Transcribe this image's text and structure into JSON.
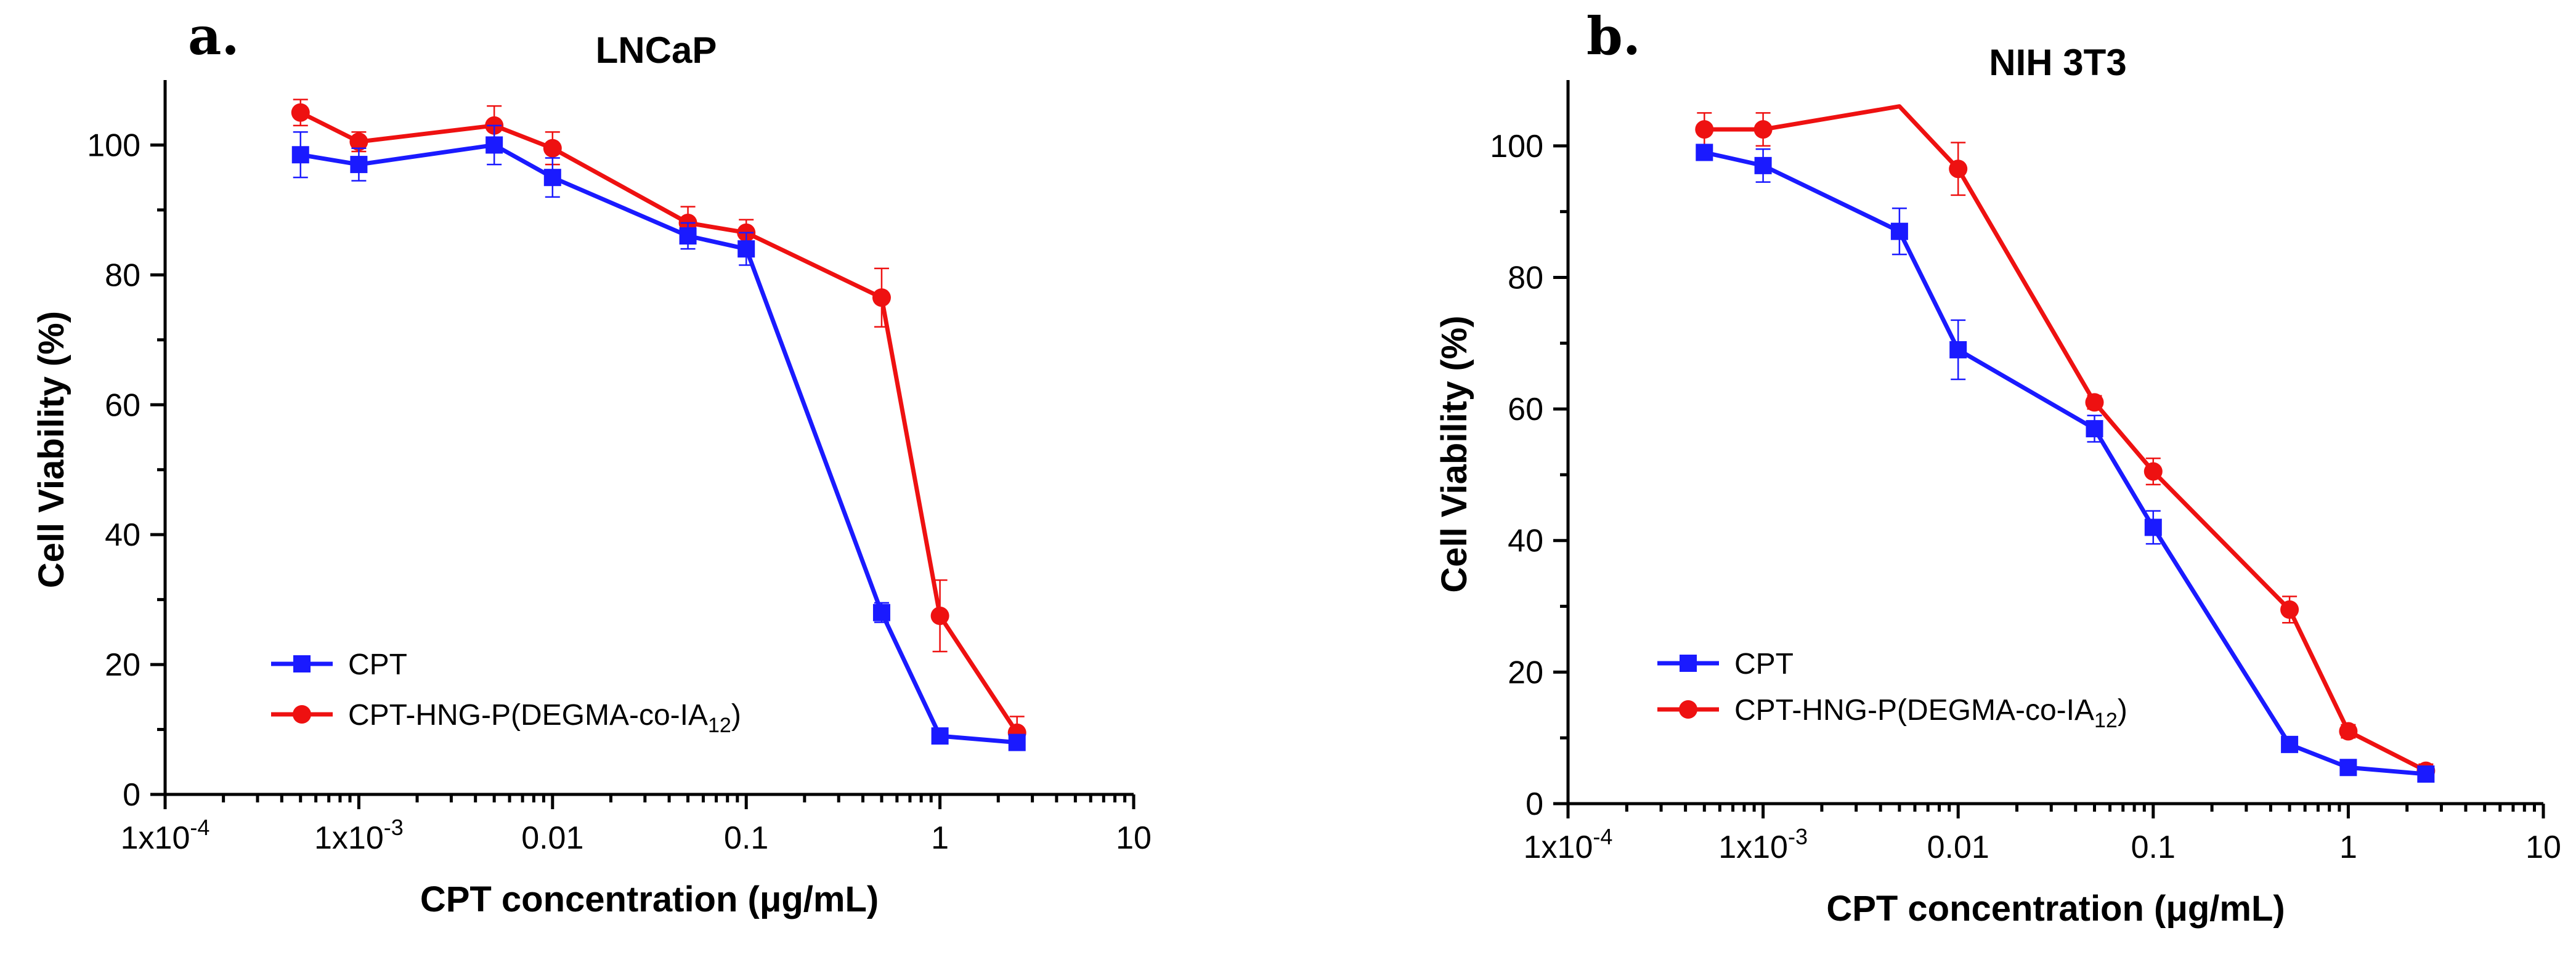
{
  "chart_data": [
    {
      "type": "line",
      "panel_label": "a.",
      "title": "LNCaP",
      "xlabel": "CPT concentration  (μg/mL)",
      "ylabel": "Cell Viability (%)",
      "xscale": "log",
      "xlim": [
        0.0001,
        10
      ],
      "ylim": [
        0,
        110
      ],
      "xticks": [
        {
          "value": 0.0001,
          "label": "1x10-4",
          "base": "1x10",
          "exp": "-4"
        },
        {
          "value": 0.001,
          "label": "1x10-3",
          "base": "1x10",
          "exp": "-3"
        },
        {
          "value": 0.01,
          "label": "0.01"
        },
        {
          "value": 0.1,
          "label": "0.1"
        },
        {
          "value": 1,
          "label": "1"
        },
        {
          "value": 10,
          "label": "10"
        }
      ],
      "yticks": [
        0,
        20,
        40,
        60,
        80,
        100
      ],
      "legend_position": "bottom-left",
      "series": [
        {
          "name": "CPT",
          "name_main": "CPT",
          "color": "#1a1aff",
          "marker": "square",
          "x": [
            0.0005,
            0.001,
            0.005,
            0.01,
            0.05,
            0.1,
            0.5,
            1,
            2.5
          ],
          "y": [
            98.5,
            97,
            100,
            95,
            86,
            84,
            28,
            9,
            8
          ],
          "err": [
            3.5,
            2.5,
            3,
            3,
            2,
            2.5,
            1.5,
            1,
            1
          ]
        },
        {
          "name": "CPT-HNG-P(DEGMA-co-IA12)",
          "name_main": "CPT-HNG-P(DEGMA-co-IA",
          "name_sub": "12",
          "name_tail": ")",
          "color": "#ee1111",
          "marker": "circle",
          "x": [
            0.0005,
            0.001,
            0.005,
            0.01,
            0.05,
            0.1,
            0.5,
            1,
            2.5
          ],
          "y": [
            105,
            100.5,
            103,
            99.5,
            88,
            86.5,
            76.5,
            27.5,
            9.5
          ],
          "err": [
            2,
            1.5,
            3,
            2.5,
            2.5,
            2,
            4.5,
            5.5,
            2.5
          ]
        }
      ]
    },
    {
      "type": "line",
      "panel_label": "b.",
      "title": "NIH 3T3",
      "xlabel": "CPT concentration  (μg/mL)",
      "ylabel": "Cell Viability (%)",
      "xscale": "log",
      "xlim": [
        0.0001,
        10
      ],
      "ylim": [
        0,
        110
      ],
      "xticks": [
        {
          "value": 0.0001,
          "label": "1x10-4",
          "base": "1x10",
          "exp": "-4"
        },
        {
          "value": 0.001,
          "label": "1x10-3",
          "base": "1x10",
          "exp": "-3"
        },
        {
          "value": 0.01,
          "label": "0.01"
        },
        {
          "value": 0.1,
          "label": "0.1"
        },
        {
          "value": 1,
          "label": "1"
        },
        {
          "value": 10,
          "label": "10"
        }
      ],
      "yticks": [
        0,
        20,
        40,
        60,
        80,
        100
      ],
      "legend_position": "bottom-left",
      "series": [
        {
          "name": "CPT",
          "name_main": "CPT",
          "color": "#1a1aff",
          "marker": "square",
          "x": [
            0.0005,
            0.001,
            0.005,
            0.01,
            0.05,
            0.1,
            0.5,
            1,
            2.5
          ],
          "y": [
            99,
            97,
            87,
            69,
            57,
            42,
            9,
            5.5,
            4.5
          ],
          "err": [
            1,
            2.5,
            3.5,
            4.5,
            2,
            2.5,
            1,
            0.5,
            0.5
          ]
        },
        {
          "name": "CPT-HNG-P(DEGMA-co-IA12)",
          "name_main": "CPT-HNG-P(DEGMA-co-IA",
          "name_sub": "12",
          "name_tail": ")",
          "color": "#ee1111",
          "marker": "circle",
          "x": [
            0.0005,
            0.001,
            0.005,
            0.01,
            0.05,
            0.1,
            0.5,
            1,
            2.5
          ],
          "y": [
            102.5,
            102.5,
            106,
            96.5,
            61,
            50.5,
            29.5,
            11,
            5
          ],
          "err": [
            2.5,
            2.5,
            0,
            4,
            1,
            2,
            2,
            1,
            1
          ]
        }
      ]
    }
  ]
}
